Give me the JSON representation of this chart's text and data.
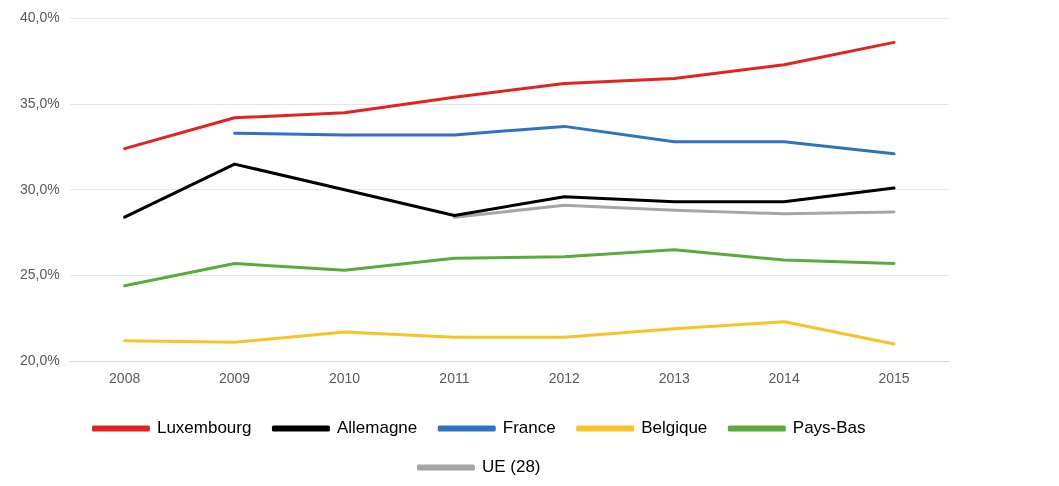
{
  "chart_data": {
    "type": "line",
    "categories": [
      "2008",
      "2009",
      "2010",
      "2011",
      "2012",
      "2013",
      "2014",
      "2015"
    ],
    "ylim": [
      20,
      40
    ],
    "yticks": [
      {
        "value": 20,
        "label": "20,0%"
      },
      {
        "value": 25,
        "label": "25,0%"
      },
      {
        "value": 30,
        "label": "30,0%"
      },
      {
        "value": 35,
        "label": "35,0%"
      },
      {
        "value": 40,
        "label": "40,0%"
      }
    ],
    "grid": "y",
    "legend": "bottom",
    "marker": "none",
    "line_style": "solid",
    "series": [
      {
        "name": "Luxembourg",
        "color": "#e32322",
        "values": [
          32.4,
          34.2,
          34.5,
          35.4,
          36.2,
          36.5,
          37.3,
          38.6
        ]
      },
      {
        "name": "Allemagne",
        "color": "#000000",
        "values": [
          28.4,
          31.5,
          30.0,
          28.5,
          29.6,
          29.3,
          29.3,
          30.1
        ]
      },
      {
        "name": "France",
        "color": "#2f73c0",
        "values": [
          null,
          33.3,
          33.2,
          33.2,
          33.7,
          32.8,
          32.8,
          32.1
        ]
      },
      {
        "name": "Belgique",
        "color": "#f7c325",
        "values": [
          21.2,
          21.1,
          21.7,
          21.4,
          21.4,
          21.9,
          22.3,
          21.0
        ]
      },
      {
        "name": "Pays-Bas",
        "color": "#5aab3c",
        "values": [
          24.4,
          25.7,
          25.3,
          26.0,
          26.1,
          26.5,
          25.9,
          25.7
        ]
      },
      {
        "name": "UE (28)",
        "color": "#a6a6a6",
        "values": [
          null,
          null,
          null,
          28.4,
          29.1,
          28.8,
          28.6,
          28.7
        ]
      }
    ]
  }
}
